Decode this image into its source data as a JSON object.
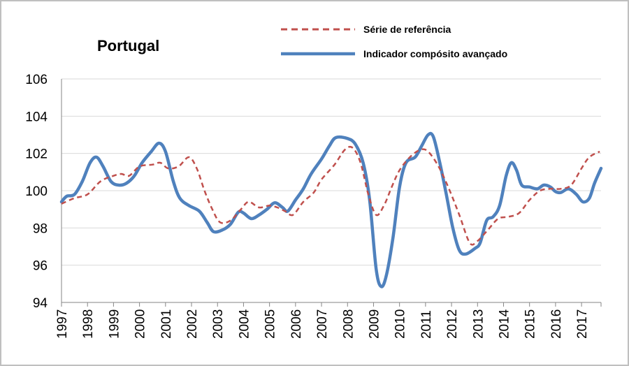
{
  "chart_data": {
    "type": "line",
    "title": "Portugal",
    "xlabel": "",
    "ylabel": "",
    "xlim": [
      1997,
      2017.75
    ],
    "ylim": [
      94,
      106
    ],
    "y_ticks": [
      94,
      96,
      98,
      100,
      102,
      104,
      106
    ],
    "x_ticks": [
      "1997",
      "1998",
      "1999",
      "2000",
      "2001",
      "2002",
      "2003",
      "2004",
      "2005",
      "2006",
      "2007",
      "2008",
      "2009",
      "2010",
      "2011",
      "2012",
      "2013",
      "2014",
      "2015",
      "2016",
      "2017"
    ],
    "grid": "horizontal",
    "legend_position": "top",
    "series": [
      {
        "name": "Série de referência",
        "style": "dashed",
        "color": "#c0504d",
        "points": [
          [
            1997.0,
            99.3
          ],
          [
            1997.5,
            99.6
          ],
          [
            1998.0,
            99.8
          ],
          [
            1998.5,
            100.5
          ],
          [
            1999.0,
            100.8
          ],
          [
            1999.3,
            100.9
          ],
          [
            1999.6,
            100.8
          ],
          [
            2000.0,
            101.3
          ],
          [
            2000.5,
            101.4
          ],
          [
            2000.8,
            101.5
          ],
          [
            2001.1,
            101.2
          ],
          [
            2001.5,
            101.3
          ],
          [
            2001.9,
            101.8
          ],
          [
            2002.2,
            101.2
          ],
          [
            2002.5,
            100.0
          ],
          [
            2002.8,
            99.0
          ],
          [
            2003.1,
            98.3
          ],
          [
            2003.5,
            98.4
          ],
          [
            2003.9,
            99.0
          ],
          [
            2004.2,
            99.4
          ],
          [
            2004.6,
            99.1
          ],
          [
            2005.0,
            99.2
          ],
          [
            2005.3,
            99.1
          ],
          [
            2005.6,
            98.9
          ],
          [
            2005.9,
            98.7
          ],
          [
            2006.3,
            99.4
          ],
          [
            2006.7,
            99.9
          ],
          [
            2007.0,
            100.6
          ],
          [
            2007.5,
            101.4
          ],
          [
            2007.9,
            102.2
          ],
          [
            2008.2,
            102.3
          ],
          [
            2008.5,
            101.5
          ],
          [
            2008.8,
            99.8
          ],
          [
            2009.1,
            98.7
          ],
          [
            2009.4,
            99.2
          ],
          [
            2009.7,
            100.2
          ],
          [
            2010.0,
            101.1
          ],
          [
            2010.4,
            101.8
          ],
          [
            2010.8,
            102.2
          ],
          [
            2011.1,
            102.1
          ],
          [
            2011.5,
            101.3
          ],
          [
            2011.9,
            100.1
          ],
          [
            2012.3,
            98.7
          ],
          [
            2012.7,
            97.2
          ],
          [
            2013.0,
            97.3
          ],
          [
            2013.4,
            97.9
          ],
          [
            2013.8,
            98.5
          ],
          [
            2014.2,
            98.6
          ],
          [
            2014.6,
            98.8
          ],
          [
            2015.0,
            99.5
          ],
          [
            2015.4,
            100.0
          ],
          [
            2015.8,
            100.1
          ],
          [
            2016.2,
            100.1
          ],
          [
            2016.6,
            100.3
          ],
          [
            2017.0,
            101.2
          ],
          [
            2017.3,
            101.8
          ],
          [
            2017.7,
            102.1
          ]
        ]
      },
      {
        "name": "Indicador compósito avançado",
        "style": "solid",
        "color": "#4f81bd",
        "points": [
          [
            1997.0,
            99.4
          ],
          [
            1997.2,
            99.7
          ],
          [
            1997.5,
            99.8
          ],
          [
            1997.8,
            100.5
          ],
          [
            1998.1,
            101.5
          ],
          [
            1998.35,
            101.8
          ],
          [
            1998.6,
            101.3
          ],
          [
            1998.9,
            100.5
          ],
          [
            1999.2,
            100.3
          ],
          [
            1999.5,
            100.4
          ],
          [
            1999.8,
            100.8
          ],
          [
            2000.1,
            101.5
          ],
          [
            2000.45,
            102.1
          ],
          [
            2000.75,
            102.55
          ],
          [
            2001.0,
            102.1
          ],
          [
            2001.3,
            100.5
          ],
          [
            2001.55,
            99.6
          ],
          [
            2001.9,
            99.2
          ],
          [
            2002.3,
            98.9
          ],
          [
            2002.6,
            98.3
          ],
          [
            2002.85,
            97.8
          ],
          [
            2003.2,
            97.9
          ],
          [
            2003.5,
            98.2
          ],
          [
            2003.8,
            98.85
          ],
          [
            2004.0,
            98.8
          ],
          [
            2004.3,
            98.5
          ],
          [
            2004.6,
            98.7
          ],
          [
            2004.9,
            99.0
          ],
          [
            2005.2,
            99.35
          ],
          [
            2005.5,
            99.1
          ],
          [
            2005.7,
            98.9
          ],
          [
            2006.0,
            99.5
          ],
          [
            2006.3,
            100.1
          ],
          [
            2006.6,
            100.9
          ],
          [
            2007.0,
            101.7
          ],
          [
            2007.3,
            102.4
          ],
          [
            2007.55,
            102.85
          ],
          [
            2008.0,
            102.8
          ],
          [
            2008.3,
            102.5
          ],
          [
            2008.6,
            101.5
          ],
          [
            2008.85,
            99.5
          ],
          [
            2009.1,
            95.8
          ],
          [
            2009.3,
            94.85
          ],
          [
            2009.5,
            95.5
          ],
          [
            2009.75,
            97.5
          ],
          [
            2010.0,
            100.2
          ],
          [
            2010.25,
            101.5
          ],
          [
            2010.6,
            101.8
          ],
          [
            2010.85,
            102.4
          ],
          [
            2011.1,
            103.0
          ],
          [
            2011.3,
            102.9
          ],
          [
            2011.55,
            101.5
          ],
          [
            2011.8,
            99.8
          ],
          [
            2012.05,
            98.0
          ],
          [
            2012.3,
            96.8
          ],
          [
            2012.55,
            96.6
          ],
          [
            2012.9,
            96.9
          ],
          [
            2013.1,
            97.2
          ],
          [
            2013.35,
            98.4
          ],
          [
            2013.6,
            98.6
          ],
          [
            2013.85,
            99.2
          ],
          [
            2014.1,
            100.8
          ],
          [
            2014.3,
            101.5
          ],
          [
            2014.5,
            101.1
          ],
          [
            2014.7,
            100.3
          ],
          [
            2015.0,
            100.2
          ],
          [
            2015.3,
            100.1
          ],
          [
            2015.55,
            100.3
          ],
          [
            2015.8,
            100.2
          ],
          [
            2016.0,
            99.95
          ],
          [
            2016.2,
            99.9
          ],
          [
            2016.5,
            100.1
          ],
          [
            2016.8,
            99.8
          ],
          [
            2017.05,
            99.4
          ],
          [
            2017.3,
            99.6
          ],
          [
            2017.5,
            100.4
          ],
          [
            2017.75,
            101.2
          ]
        ]
      }
    ]
  }
}
